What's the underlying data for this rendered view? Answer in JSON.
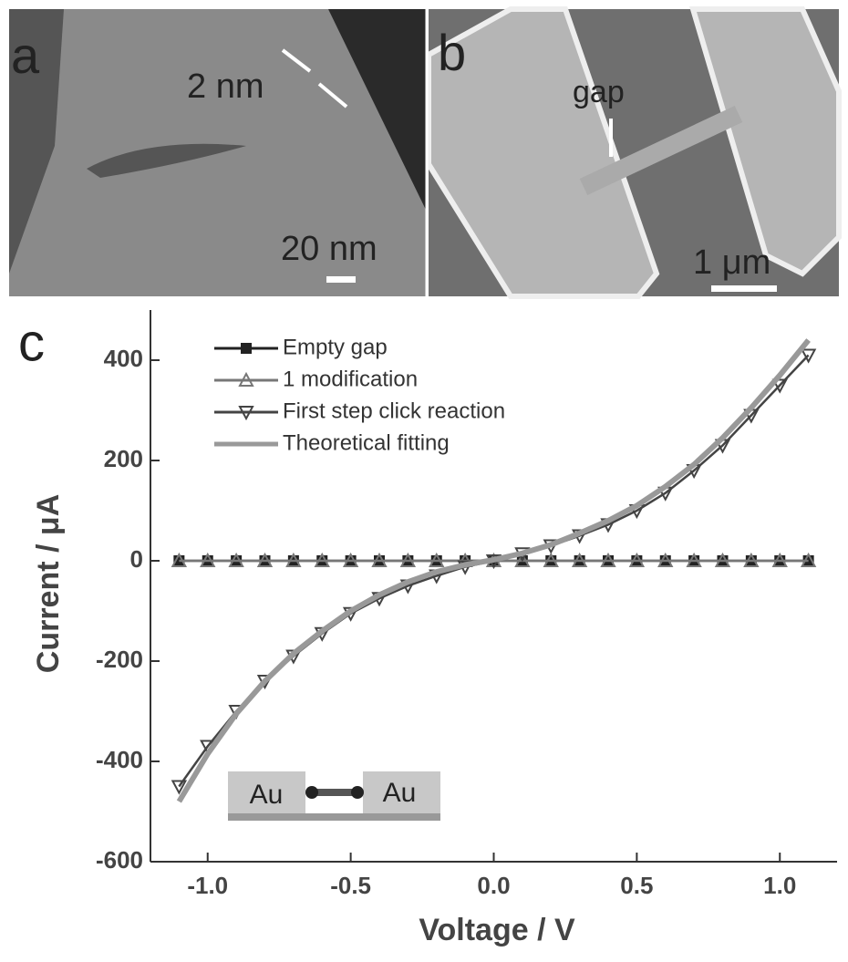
{
  "panels": [
    {
      "label": "a",
      "annotations": [
        "2 nm",
        "20 nm"
      ]
    },
    {
      "label": "b",
      "annotations": [
        "gap",
        "1 μm"
      ]
    }
  ],
  "chart_data": {
    "type": "line",
    "label": "c",
    "x_label": "Voltage / V",
    "y_label": "Current / μA",
    "x": [
      -1.1,
      -1.0,
      -0.9,
      -0.8,
      -0.7,
      -0.6,
      -0.5,
      -0.4,
      -0.3,
      -0.2,
      -0.1,
      0.0,
      0.1,
      0.2,
      0.3,
      0.4,
      0.5,
      0.6,
      0.7,
      0.8,
      0.9,
      1.0,
      1.1
    ],
    "series": [
      {
        "name": "Empty gap",
        "color": "#222222",
        "marker": "square",
        "values": [
          0,
          0,
          0,
          0,
          0,
          0,
          0,
          0,
          0,
          0,
          0,
          0,
          0,
          0,
          0,
          0,
          0,
          0,
          0,
          0,
          0,
          0,
          0
        ]
      },
      {
        "name": "1 modification",
        "color": "#777777",
        "marker": "triangle-up",
        "values": [
          0,
          0,
          0,
          0,
          0,
          0,
          0,
          0,
          0,
          0,
          0,
          0,
          0,
          0,
          0,
          0,
          0,
          0,
          0,
          0,
          0,
          0,
          0
        ]
      },
      {
        "name": "First step click reaction",
        "color": "#444444",
        "marker": "triangle-down",
        "values": [
          -450,
          -370,
          -300,
          -240,
          -190,
          -145,
          -105,
          -75,
          -50,
          -30,
          -12,
          0,
          14,
          30,
          50,
          72,
          100,
          135,
          180,
          230,
          290,
          350,
          410
        ]
      },
      {
        "name": "Theoretical fitting",
        "color": "#999999",
        "marker": "none",
        "values": [
          -480,
          -385,
          -305,
          -240,
          -185,
          -140,
          -100,
          -68,
          -42,
          -22,
          -8,
          2,
          15,
          32,
          55,
          80,
          110,
          148,
          192,
          245,
          305,
          370,
          440
        ]
      }
    ],
    "xlim": [
      -1.2,
      1.2
    ],
    "ylim": [
      -600,
      500
    ],
    "xticks": [
      {
        "value": -1.0,
        "label": "-1.0"
      },
      -0.5,
      {
        "value": 0.0,
        "label": "0.0"
      },
      0.5,
      {
        "value": 1.0,
        "label": "1.0"
      }
    ],
    "yticks": [
      -600,
      -400,
      -200,
      0,
      200,
      400
    ],
    "inset_labels": [
      "Au",
      "Au"
    ]
  }
}
